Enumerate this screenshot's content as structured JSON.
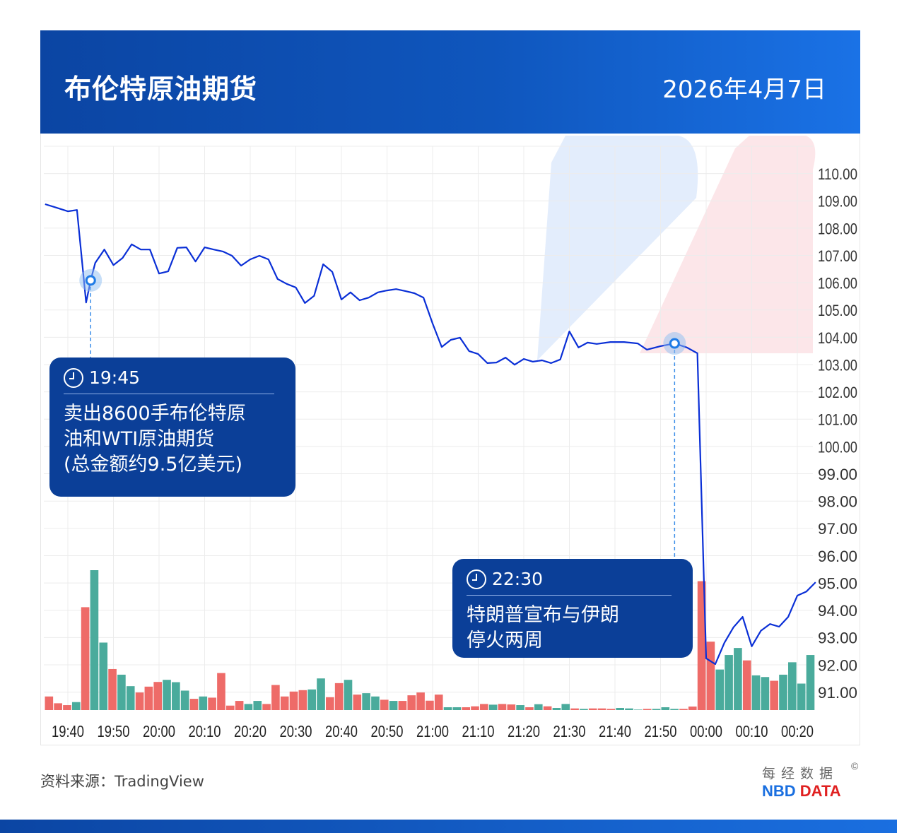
{
  "header": {
    "title": "布伦特原油期货",
    "date": "2026年4月7日"
  },
  "colors": {
    "line": "#0a2fd6",
    "up_volume": "#4aab9c",
    "down_volume": "#ee6b68",
    "header": "#0b45a3",
    "annotation_bg": "#0b3f98",
    "marker": "#1e7be6"
  },
  "annotations": [
    {
      "time": "19:45",
      "text_lines": [
        "卖出8600手布伦特原",
        "油和WTI原油期货",
        "(总金额约9.5亿美元)"
      ],
      "price": 106.07
    },
    {
      "time": "22:30",
      "text_lines": [
        "特朗普宣布与伊朗",
        "停火两周"
      ],
      "price": 103.76
    }
  ],
  "footer": {
    "source": "资料来源：TradingView",
    "logo_cn": "每经数据",
    "logo_en_1": "NBD",
    "logo_en_2": "DATA",
    "copyright": "©"
  },
  "chart_data": {
    "type": "line",
    "title": "布伦特原油期货",
    "xlabel": "",
    "ylabel": "",
    "ylim": [
      90.3,
      110.5
    ],
    "grid": true,
    "x_ticks": [
      "19:40",
      "19:50",
      "20:00",
      "20:10",
      "20:20",
      "20:30",
      "20:40",
      "20:50",
      "21:00",
      "21:10",
      "21:20",
      "21:30",
      "21:40",
      "21:50",
      "00:00",
      "00:10",
      "00:20"
    ],
    "y_ticks": [
      "110.00",
      "109.00",
      "108.00",
      "107.00",
      "106.00",
      "105.00",
      "104.00",
      "103.00",
      "102.00",
      "101.00",
      "100.00",
      "99.00",
      "98.00",
      "97.00",
      "96.00",
      "95.00",
      "94.00",
      "93.00",
      "92.00",
      "91.00"
    ],
    "y_axis_side": "right",
    "price_series": [
      [
        "19:35",
        108.86
      ],
      [
        "19:37",
        108.76
      ],
      [
        "19:40",
        108.6
      ],
      [
        "19:42",
        108.65
      ],
      [
        "19:44",
        105.26
      ],
      [
        "19:45",
        106.07
      ],
      [
        "19:46",
        106.71
      ],
      [
        "19:48",
        107.2
      ],
      [
        "19:50",
        106.63
      ],
      [
        "19:52",
        106.89
      ],
      [
        "19:54",
        107.39
      ],
      [
        "19:56",
        107.2
      ],
      [
        "19:58",
        107.2
      ],
      [
        "20:00",
        106.32
      ],
      [
        "20:02",
        106.4
      ],
      [
        "20:04",
        107.26
      ],
      [
        "20:06",
        107.28
      ],
      [
        "20:08",
        106.76
      ],
      [
        "20:10",
        107.28
      ],
      [
        "20:12",
        107.2
      ],
      [
        "20:14",
        107.13
      ],
      [
        "20:16",
        106.97
      ],
      [
        "20:18",
        106.61
      ],
      [
        "20:20",
        106.84
      ],
      [
        "20:22",
        106.97
      ],
      [
        "20:24",
        106.84
      ],
      [
        "20:26",
        106.12
      ],
      [
        "20:28",
        105.94
      ],
      [
        "20:30",
        105.81
      ],
      [
        "20:32",
        105.24
      ],
      [
        "20:34",
        105.5
      ],
      [
        "20:36",
        106.66
      ],
      [
        "20:38",
        106.38
      ],
      [
        "20:40",
        105.37
      ],
      [
        "20:42",
        105.63
      ],
      [
        "20:44",
        105.34
      ],
      [
        "20:46",
        105.44
      ],
      [
        "20:48",
        105.63
      ],
      [
        "20:50",
        105.7
      ],
      [
        "20:52",
        105.75
      ],
      [
        "20:54",
        105.68
      ],
      [
        "20:56",
        105.6
      ],
      [
        "20:58",
        105.44
      ],
      [
        "21:00",
        104.49
      ],
      [
        "21:02",
        103.63
      ],
      [
        "21:04",
        103.89
      ],
      [
        "21:06",
        103.97
      ],
      [
        "21:08",
        103.48
      ],
      [
        "21:10",
        103.37
      ],
      [
        "21:12",
        103.04
      ],
      [
        "21:14",
        103.06
      ],
      [
        "21:16",
        103.24
      ],
      [
        "21:18",
        102.98
      ],
      [
        "21:20",
        103.19
      ],
      [
        "21:22",
        103.09
      ],
      [
        "21:24",
        103.14
      ],
      [
        "21:26",
        103.04
      ],
      [
        "21:28",
        103.17
      ],
      [
        "21:30",
        104.2
      ],
      [
        "21:32",
        103.61
      ],
      [
        "21:34",
        103.79
      ],
      [
        "21:36",
        103.74
      ],
      [
        "21:39",
        103.81
      ],
      [
        "21:42",
        103.81
      ],
      [
        "21:45",
        103.76
      ],
      [
        "21:47",
        103.53
      ],
      [
        "21:50",
        103.66
      ],
      [
        "22:30",
        103.76
      ],
      [
        "23:05",
        103.61
      ],
      [
        "23:35",
        103.4
      ],
      [
        "00:00",
        92.22
      ],
      [
        "00:02",
        92.01
      ],
      [
        "00:04",
        92.79
      ],
      [
        "00:06",
        93.36
      ],
      [
        "00:08",
        93.74
      ],
      [
        "00:10",
        92.66
      ],
      [
        "00:12",
        93.23
      ],
      [
        "00:14",
        93.48
      ],
      [
        "00:16",
        93.38
      ],
      [
        "00:18",
        93.74
      ],
      [
        "00:20",
        94.52
      ],
      [
        "00:22",
        94.67
      ],
      [
        "00:24",
        95.01
      ]
    ],
    "volume_series": {
      "values": [
        58,
        29,
        21,
        34,
        439,
        597,
        288,
        175,
        151,
        102,
        75,
        100,
        120,
        129,
        119,
        83,
        48,
        58,
        53,
        158,
        19,
        39,
        26,
        39,
        26,
        107,
        58,
        79,
        85,
        88,
        135,
        55,
        115,
        129,
        66,
        72,
        58,
        44,
        39,
        39,
        63,
        75,
        40,
        66,
        12,
        12,
        12,
        16,
        26,
        23,
        26,
        24,
        21,
        12,
        25,
        16,
        9,
        26,
        7,
        5,
        7,
        7,
        5,
        9,
        7,
        2,
        5,
        5,
        12,
        5,
        5,
        15,
        550,
        292,
        173,
        235,
        265,
        212,
        148,
        141,
        125,
        151,
        204,
        113,
        235
      ],
      "direction": [
        "d",
        "d",
        "d",
        "u",
        "d",
        "u",
        "u",
        "d",
        "u",
        "u",
        "d",
        "d",
        "d",
        "u",
        "u",
        "u",
        "d",
        "u",
        "d",
        "d",
        "d",
        "d",
        "u",
        "u",
        "d",
        "d",
        "d",
        "d",
        "d",
        "u",
        "u",
        "d",
        "d",
        "u",
        "d",
        "u",
        "u",
        "d",
        "u",
        "d",
        "d",
        "d",
        "d",
        "d",
        "u",
        "u",
        "d",
        "d",
        "d",
        "u",
        "d",
        "d",
        "u",
        "d",
        "u",
        "d",
        "u",
        "u",
        "d",
        "u",
        "d",
        "d",
        "d",
        "u",
        "u",
        "u",
        "d",
        "u",
        "u",
        "u",
        "d",
        "d",
        "d",
        "d",
        "u",
        "u",
        "u",
        "d",
        "u",
        "u",
        "d",
        "u",
        "u",
        "u",
        "u"
      ]
    }
  }
}
